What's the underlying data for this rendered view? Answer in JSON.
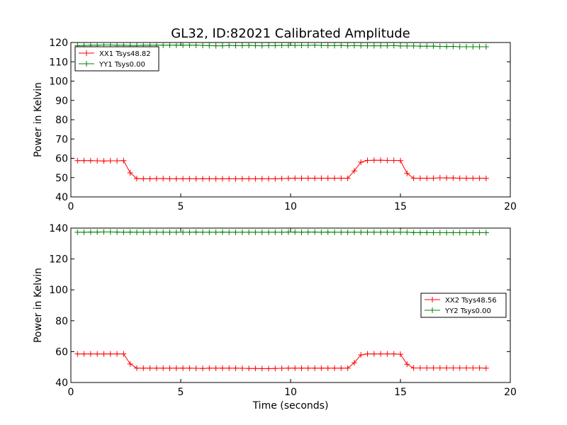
{
  "title": "GL32, ID:82021 Calibrated Amplitude",
  "chart_data": [
    {
      "type": "line",
      "xlabel": "",
      "ylabel": "Power in Kelvin",
      "xlim": [
        0,
        20
      ],
      "ylim": [
        40,
        120
      ],
      "xticks": [
        0,
        5,
        10,
        15,
        20
      ],
      "yticks": [
        40,
        50,
        60,
        70,
        80,
        90,
        100,
        110,
        120
      ],
      "legend_position": "upper-left",
      "series": [
        {
          "name": "XX1 Tsys48.82",
          "color": "#ff0000",
          "x": [
            0.3,
            0.6,
            0.9,
            1.2,
            1.5,
            1.8,
            2.1,
            2.4,
            2.7,
            3.0,
            3.3,
            3.6,
            3.9,
            4.2,
            4.5,
            4.8,
            5.1,
            5.4,
            5.7,
            6.0,
            6.3,
            6.6,
            6.9,
            7.2,
            7.5,
            7.8,
            8.1,
            8.4,
            8.7,
            9.0,
            9.3,
            9.6,
            9.9,
            10.2,
            10.5,
            10.8,
            11.1,
            11.4,
            11.7,
            12.0,
            12.3,
            12.6,
            12.9,
            13.2,
            13.5,
            13.8,
            14.1,
            14.4,
            14.7,
            15.0,
            15.3,
            15.6,
            15.9,
            16.2,
            16.5,
            16.8,
            17.1,
            17.4,
            17.7,
            18.0,
            18.3,
            18.6,
            18.9
          ],
          "values": [
            58.8,
            58.8,
            58.8,
            58.7,
            58.6,
            58.7,
            58.7,
            58.8,
            52.5,
            49.5,
            49.4,
            49.4,
            49.5,
            49.5,
            49.4,
            49.4,
            49.4,
            49.4,
            49.4,
            49.4,
            49.4,
            49.4,
            49.4,
            49.4,
            49.4,
            49.4,
            49.4,
            49.4,
            49.4,
            49.4,
            49.4,
            49.5,
            49.6,
            49.7,
            49.7,
            49.7,
            49.7,
            49.7,
            49.7,
            49.7,
            49.7,
            49.7,
            53.5,
            58.0,
            58.9,
            59.0,
            59.0,
            58.9,
            58.9,
            58.8,
            52.2,
            49.7,
            49.7,
            49.7,
            49.7,
            49.9,
            49.8,
            49.8,
            49.7,
            49.7,
            49.7,
            49.7,
            49.6
          ]
        },
        {
          "name": "YY1 Tsys0.00",
          "color": "#008000",
          "x": [
            0.3,
            0.6,
            0.9,
            1.2,
            1.5,
            1.8,
            2.1,
            2.4,
            2.7,
            3.0,
            3.3,
            3.6,
            3.9,
            4.2,
            4.5,
            4.8,
            5.1,
            5.4,
            5.7,
            6.0,
            6.3,
            6.6,
            6.9,
            7.2,
            7.5,
            7.8,
            8.1,
            8.4,
            8.7,
            9.0,
            9.3,
            9.6,
            9.9,
            10.2,
            10.5,
            10.8,
            11.1,
            11.4,
            11.7,
            12.0,
            12.3,
            12.6,
            12.9,
            13.2,
            13.5,
            13.8,
            14.1,
            14.4,
            14.7,
            15.0,
            15.3,
            15.6,
            15.9,
            16.2,
            16.5,
            16.8,
            17.1,
            17.4,
            17.7,
            18.0,
            18.3,
            18.6,
            18.9
          ],
          "values": [
            118.4,
            118.5,
            118.6,
            118.6,
            118.7,
            118.7,
            118.6,
            118.6,
            118.5,
            118.5,
            118.6,
            118.6,
            118.6,
            118.6,
            118.6,
            118.6,
            118.6,
            118.6,
            118.6,
            118.5,
            118.4,
            118.3,
            118.3,
            118.5,
            118.4,
            118.4,
            118.5,
            118.4,
            118.3,
            118.4,
            118.4,
            118.5,
            118.5,
            118.5,
            118.5,
            118.5,
            118.6,
            118.5,
            118.4,
            118.4,
            118.5,
            118.3,
            118.4,
            118.3,
            118.3,
            118.3,
            118.3,
            118.3,
            118.4,
            118.2,
            118.2,
            118.2,
            118.1,
            118.1,
            118.1,
            118.0,
            117.9,
            118.0,
            117.8,
            117.8,
            117.8,
            117.8,
            117.8
          ]
        }
      ]
    },
    {
      "type": "line",
      "xlabel": "Time (seconds)",
      "ylabel": "Power in Kelvin",
      "xlim": [
        0,
        20
      ],
      "ylim": [
        40,
        140
      ],
      "xticks": [
        0,
        5,
        10,
        15,
        20
      ],
      "yticks": [
        40,
        60,
        80,
        100,
        120,
        140
      ],
      "legend_position": "center-right",
      "series": [
        {
          "name": "XX2 Tsys48.56",
          "color": "#ff0000",
          "x": [
            0.3,
            0.6,
            0.9,
            1.2,
            1.5,
            1.8,
            2.1,
            2.4,
            2.7,
            3.0,
            3.3,
            3.6,
            3.9,
            4.2,
            4.5,
            4.8,
            5.1,
            5.4,
            5.7,
            6.0,
            6.3,
            6.6,
            6.9,
            7.2,
            7.5,
            7.8,
            8.1,
            8.4,
            8.7,
            9.0,
            9.3,
            9.6,
            9.9,
            10.2,
            10.5,
            10.8,
            11.1,
            11.4,
            11.7,
            12.0,
            12.3,
            12.6,
            12.9,
            13.2,
            13.5,
            13.8,
            14.1,
            14.4,
            14.7,
            15.0,
            15.3,
            15.6,
            15.9,
            16.2,
            16.5,
            16.8,
            17.1,
            17.4,
            17.7,
            18.0,
            18.3,
            18.6,
            18.9
          ],
          "values": [
            58.5,
            58.5,
            58.5,
            58.5,
            58.5,
            58.5,
            58.5,
            58.5,
            52.0,
            49.3,
            49.3,
            49.3,
            49.3,
            49.3,
            49.3,
            49.3,
            49.3,
            49.3,
            49.2,
            49.1,
            49.3,
            49.3,
            49.3,
            49.3,
            49.3,
            49.2,
            49.1,
            49.1,
            49.0,
            49.0,
            49.1,
            49.2,
            49.3,
            49.3,
            49.3,
            49.3,
            49.3,
            49.3,
            49.3,
            49.3,
            49.3,
            49.3,
            52.8,
            57.9,
            58.5,
            58.5,
            58.5,
            58.5,
            58.5,
            58.3,
            51.8,
            49.4,
            49.4,
            49.4,
            49.4,
            49.4,
            49.4,
            49.4,
            49.4,
            49.4,
            49.4,
            49.4,
            49.3
          ]
        },
        {
          "name": "YY2 Tsys0.00",
          "color": "#008000",
          "x": [
            0.3,
            0.6,
            0.9,
            1.2,
            1.5,
            1.8,
            2.1,
            2.4,
            2.7,
            3.0,
            3.3,
            3.6,
            3.9,
            4.2,
            4.5,
            4.8,
            5.1,
            5.4,
            5.7,
            6.0,
            6.3,
            6.6,
            6.9,
            7.2,
            7.5,
            7.8,
            8.1,
            8.4,
            8.7,
            9.0,
            9.3,
            9.6,
            9.9,
            10.2,
            10.5,
            10.8,
            11.1,
            11.4,
            11.7,
            12.0,
            12.3,
            12.6,
            12.9,
            13.2,
            13.5,
            13.8,
            14.1,
            14.4,
            14.7,
            15.0,
            15.3,
            15.6,
            15.9,
            16.2,
            16.5,
            16.8,
            17.1,
            17.4,
            17.7,
            18.0,
            18.3,
            18.6,
            18.9
          ],
          "values": [
            137.3,
            137.3,
            137.4,
            137.4,
            137.5,
            137.5,
            137.4,
            137.3,
            137.4,
            137.3,
            137.3,
            137.3,
            137.3,
            137.3,
            137.3,
            137.3,
            137.3,
            137.3,
            137.4,
            137.3,
            137.3,
            137.3,
            137.4,
            137.3,
            137.3,
            137.3,
            137.3,
            137.3,
            137.3,
            137.3,
            137.3,
            137.3,
            137.4,
            137.4,
            137.3,
            137.4,
            137.4,
            137.3,
            137.4,
            137.3,
            137.3,
            137.3,
            137.3,
            137.3,
            137.3,
            137.3,
            137.3,
            137.3,
            137.3,
            137.3,
            137.3,
            137.1,
            137.1,
            137.1,
            137.0,
            137.0,
            137.0,
            137.0,
            137.0,
            137.0,
            137.0,
            137.0,
            137.0
          ]
        }
      ]
    }
  ]
}
